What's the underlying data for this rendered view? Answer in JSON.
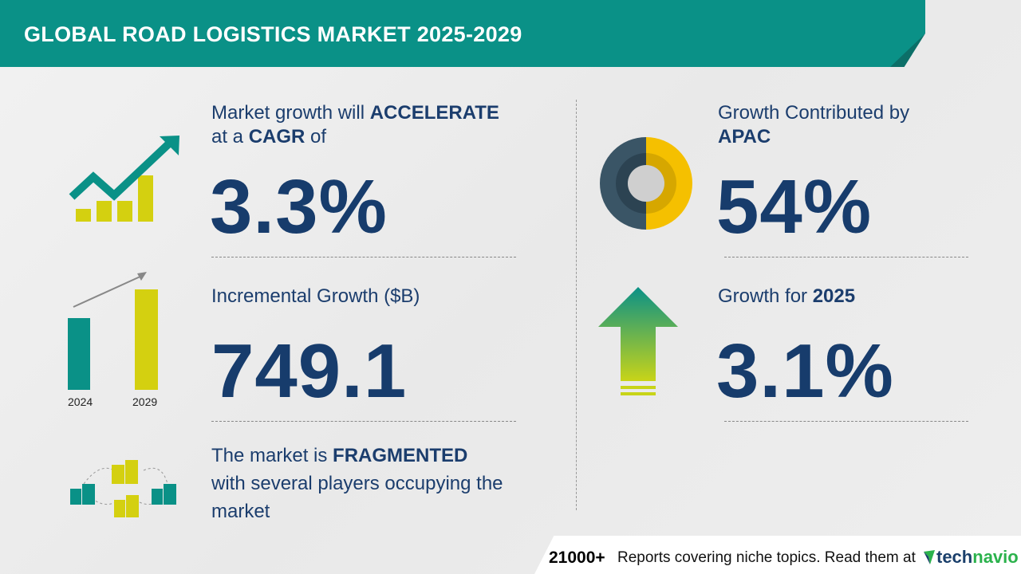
{
  "header": {
    "title": "GLOBAL ROAD LOGISTICS MARKET 2025-2029"
  },
  "cagr": {
    "line1_pre": "Market growth will ",
    "line1_bold": "ACCELERATE",
    "line2_pre": "at a ",
    "line2_bold": "CAGR",
    "line2_post": " of",
    "value": "3.3%",
    "icon": "growth-chart-icon"
  },
  "incremental": {
    "label": "Incremental Growth ($B)",
    "value": "749.1",
    "bar_labels": [
      "2024",
      "2029"
    ],
    "bar_colors": [
      "#0a9187",
      "#d4d010"
    ]
  },
  "fragmented": {
    "line1_pre": "The market is ",
    "line1_bold": "FRAGMENTED",
    "line2": "with several players occupying the",
    "line3": "market",
    "icon": "buildings-network-icon"
  },
  "region": {
    "label": "Growth Contributed by",
    "region": "APAC",
    "value": "54%",
    "share": 54,
    "icon": "donut-icon"
  },
  "yoy": {
    "label_pre": "Growth for ",
    "year": "2025",
    "value": "3.1%",
    "icon": "up-arrow-icon"
  },
  "footer": {
    "count": "21000+",
    "text": "Reports covering niche topics. Read them at",
    "logo_tech": "tech",
    "logo_navio": "navio"
  },
  "colors": {
    "teal": "#0a9187",
    "navy": "#1b3d6d",
    "yellow": "#d4d010",
    "donut_dark": "#3a5566",
    "donut_yellow": "#f5c000"
  }
}
